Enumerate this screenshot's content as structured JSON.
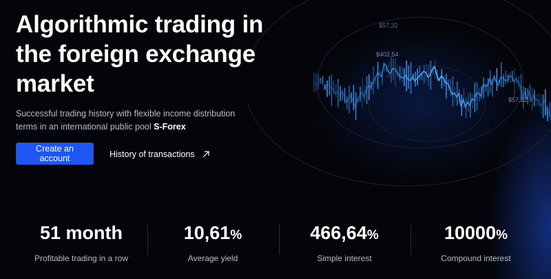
{
  "hero": {
    "title": "Algorithmic trading in the foreign exchange market",
    "subtitle_prefix": "Successful trading history with flexible income distribution terms in an international public pool ",
    "subtitle_brand": "S-Forex"
  },
  "actions": {
    "create_account_label": "Create an account",
    "history_label": "History of transactions"
  },
  "chart_tags": [
    "$57,32",
    "$402,54",
    "$57,32"
  ],
  "stats": [
    {
      "value": "51 month",
      "suffix": "",
      "label": "Profitable trading in a row"
    },
    {
      "value": "10,61",
      "suffix": "%",
      "label": "Average yield"
    },
    {
      "value": "466,64",
      "suffix": "%",
      "label": "Simple interest"
    },
    {
      "value": "10000",
      "suffix": "%",
      "label": "Compound interest"
    }
  ],
  "colors": {
    "background": "#04050a",
    "accent": "#1d56f0",
    "muted_text": "#b7bcc7",
    "chart_glow": "#3aa0ff"
  },
  "icons": {
    "history_arrow": "arrow-up-right-icon"
  }
}
